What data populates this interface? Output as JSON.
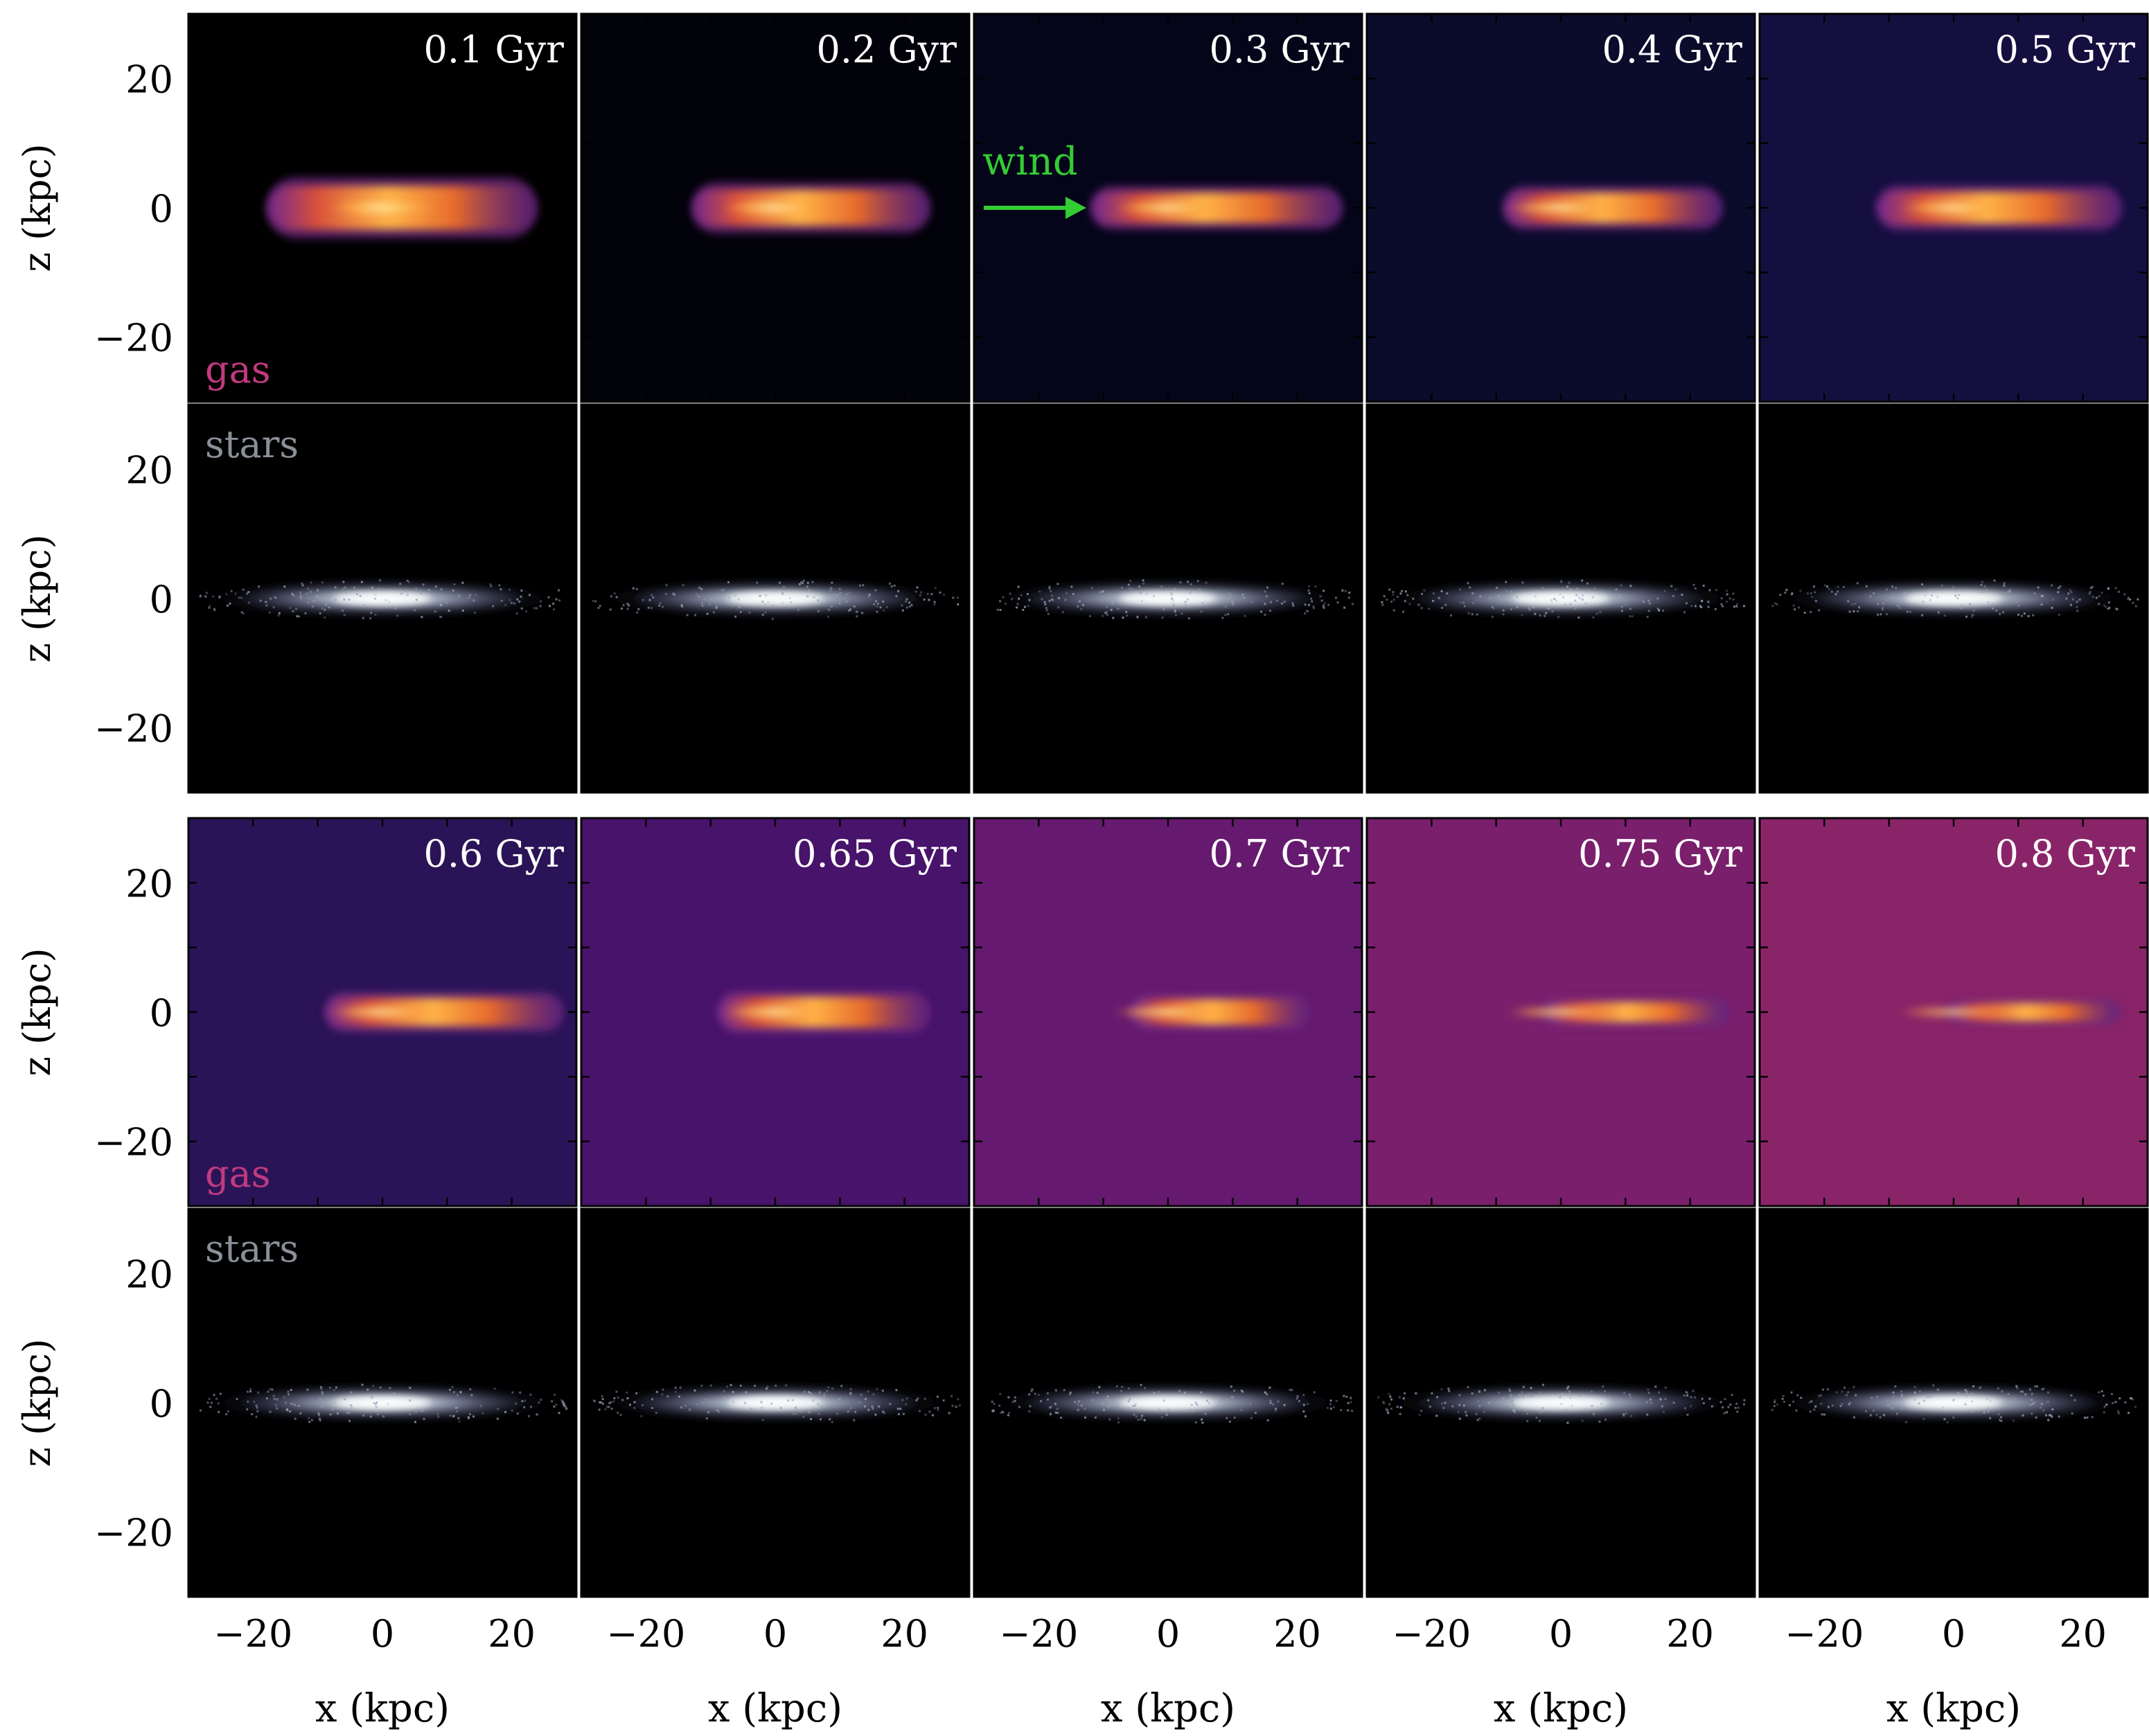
{
  "figure": {
    "blocks": [
      {
        "panels": [
          {
            "time_label": "0.1 Gyr",
            "gas_bg": "#000000",
            "gas_extent": [
              -18,
              24
            ],
            "gas_thickness": 3.4
          },
          {
            "time_label": "0.2 Gyr",
            "gas_bg": "#02020a",
            "gas_extent": [
              -13,
              24
            ],
            "gas_thickness": 2.8
          },
          {
            "time_label": "0.3 Gyr",
            "gas_bg": "#05051a",
            "gas_extent": [
              -12,
              27
            ],
            "gas_thickness": 2.4
          },
          {
            "time_label": "0.4 Gyr",
            "gas_bg": "#0b0b2b",
            "gas_extent": [
              -9,
              25
            ],
            "gas_thickness": 2.4
          },
          {
            "time_label": "0.5 Gyr",
            "gas_bg": "#150f40",
            "gas_extent": [
              -12,
              26
            ],
            "gas_thickness": 2.5
          }
        ]
      },
      {
        "panels": [
          {
            "time_label": "0.6 Gyr",
            "gas_bg": "#2a1457",
            "gas_extent": [
              -9,
              28
            ],
            "gas_thickness": 2.2
          },
          {
            "time_label": "0.65 Gyr",
            "gas_bg": "#47136b",
            "gas_extent": [
              -9,
              24
            ],
            "gas_thickness": 2.4
          },
          {
            "time_label": "0.7 Gyr",
            "gas_bg": "#661a6f",
            "gas_extent": [
              -6,
              22
            ],
            "gas_thickness": 2.0
          },
          {
            "time_label": "0.75 Gyr",
            "gas_bg": "#7a1f6c",
            "gas_extent": [
              -3,
              26
            ],
            "gas_thickness": 1.6
          },
          {
            "time_label": "0.8 Gyr",
            "gas_bg": "#8a2468",
            "gas_extent": [
              -1,
              26
            ],
            "gas_thickness": 1.4
          }
        ]
      }
    ],
    "row_labels": {
      "gas": "gas",
      "stars": "stars"
    },
    "y_axis_label": "z (kpc)",
    "x_axis_label": "x (kpc)",
    "y_tick_labels": [
      "20",
      "0",
      "−20"
    ],
    "x_tick_labels": [
      "−20",
      "0",
      "20"
    ],
    "annotation": {
      "text": "wind",
      "panel": 2
    },
    "colors": {
      "gas_label": "#c23a80",
      "stars_label": "#8a8f99",
      "wind": "#33cc33",
      "time_label": "#ffffff",
      "stars_bg": "#000000"
    },
    "axes": {
      "xlim": [
        -30,
        30
      ],
      "ylim": [
        -30,
        30
      ]
    }
  }
}
